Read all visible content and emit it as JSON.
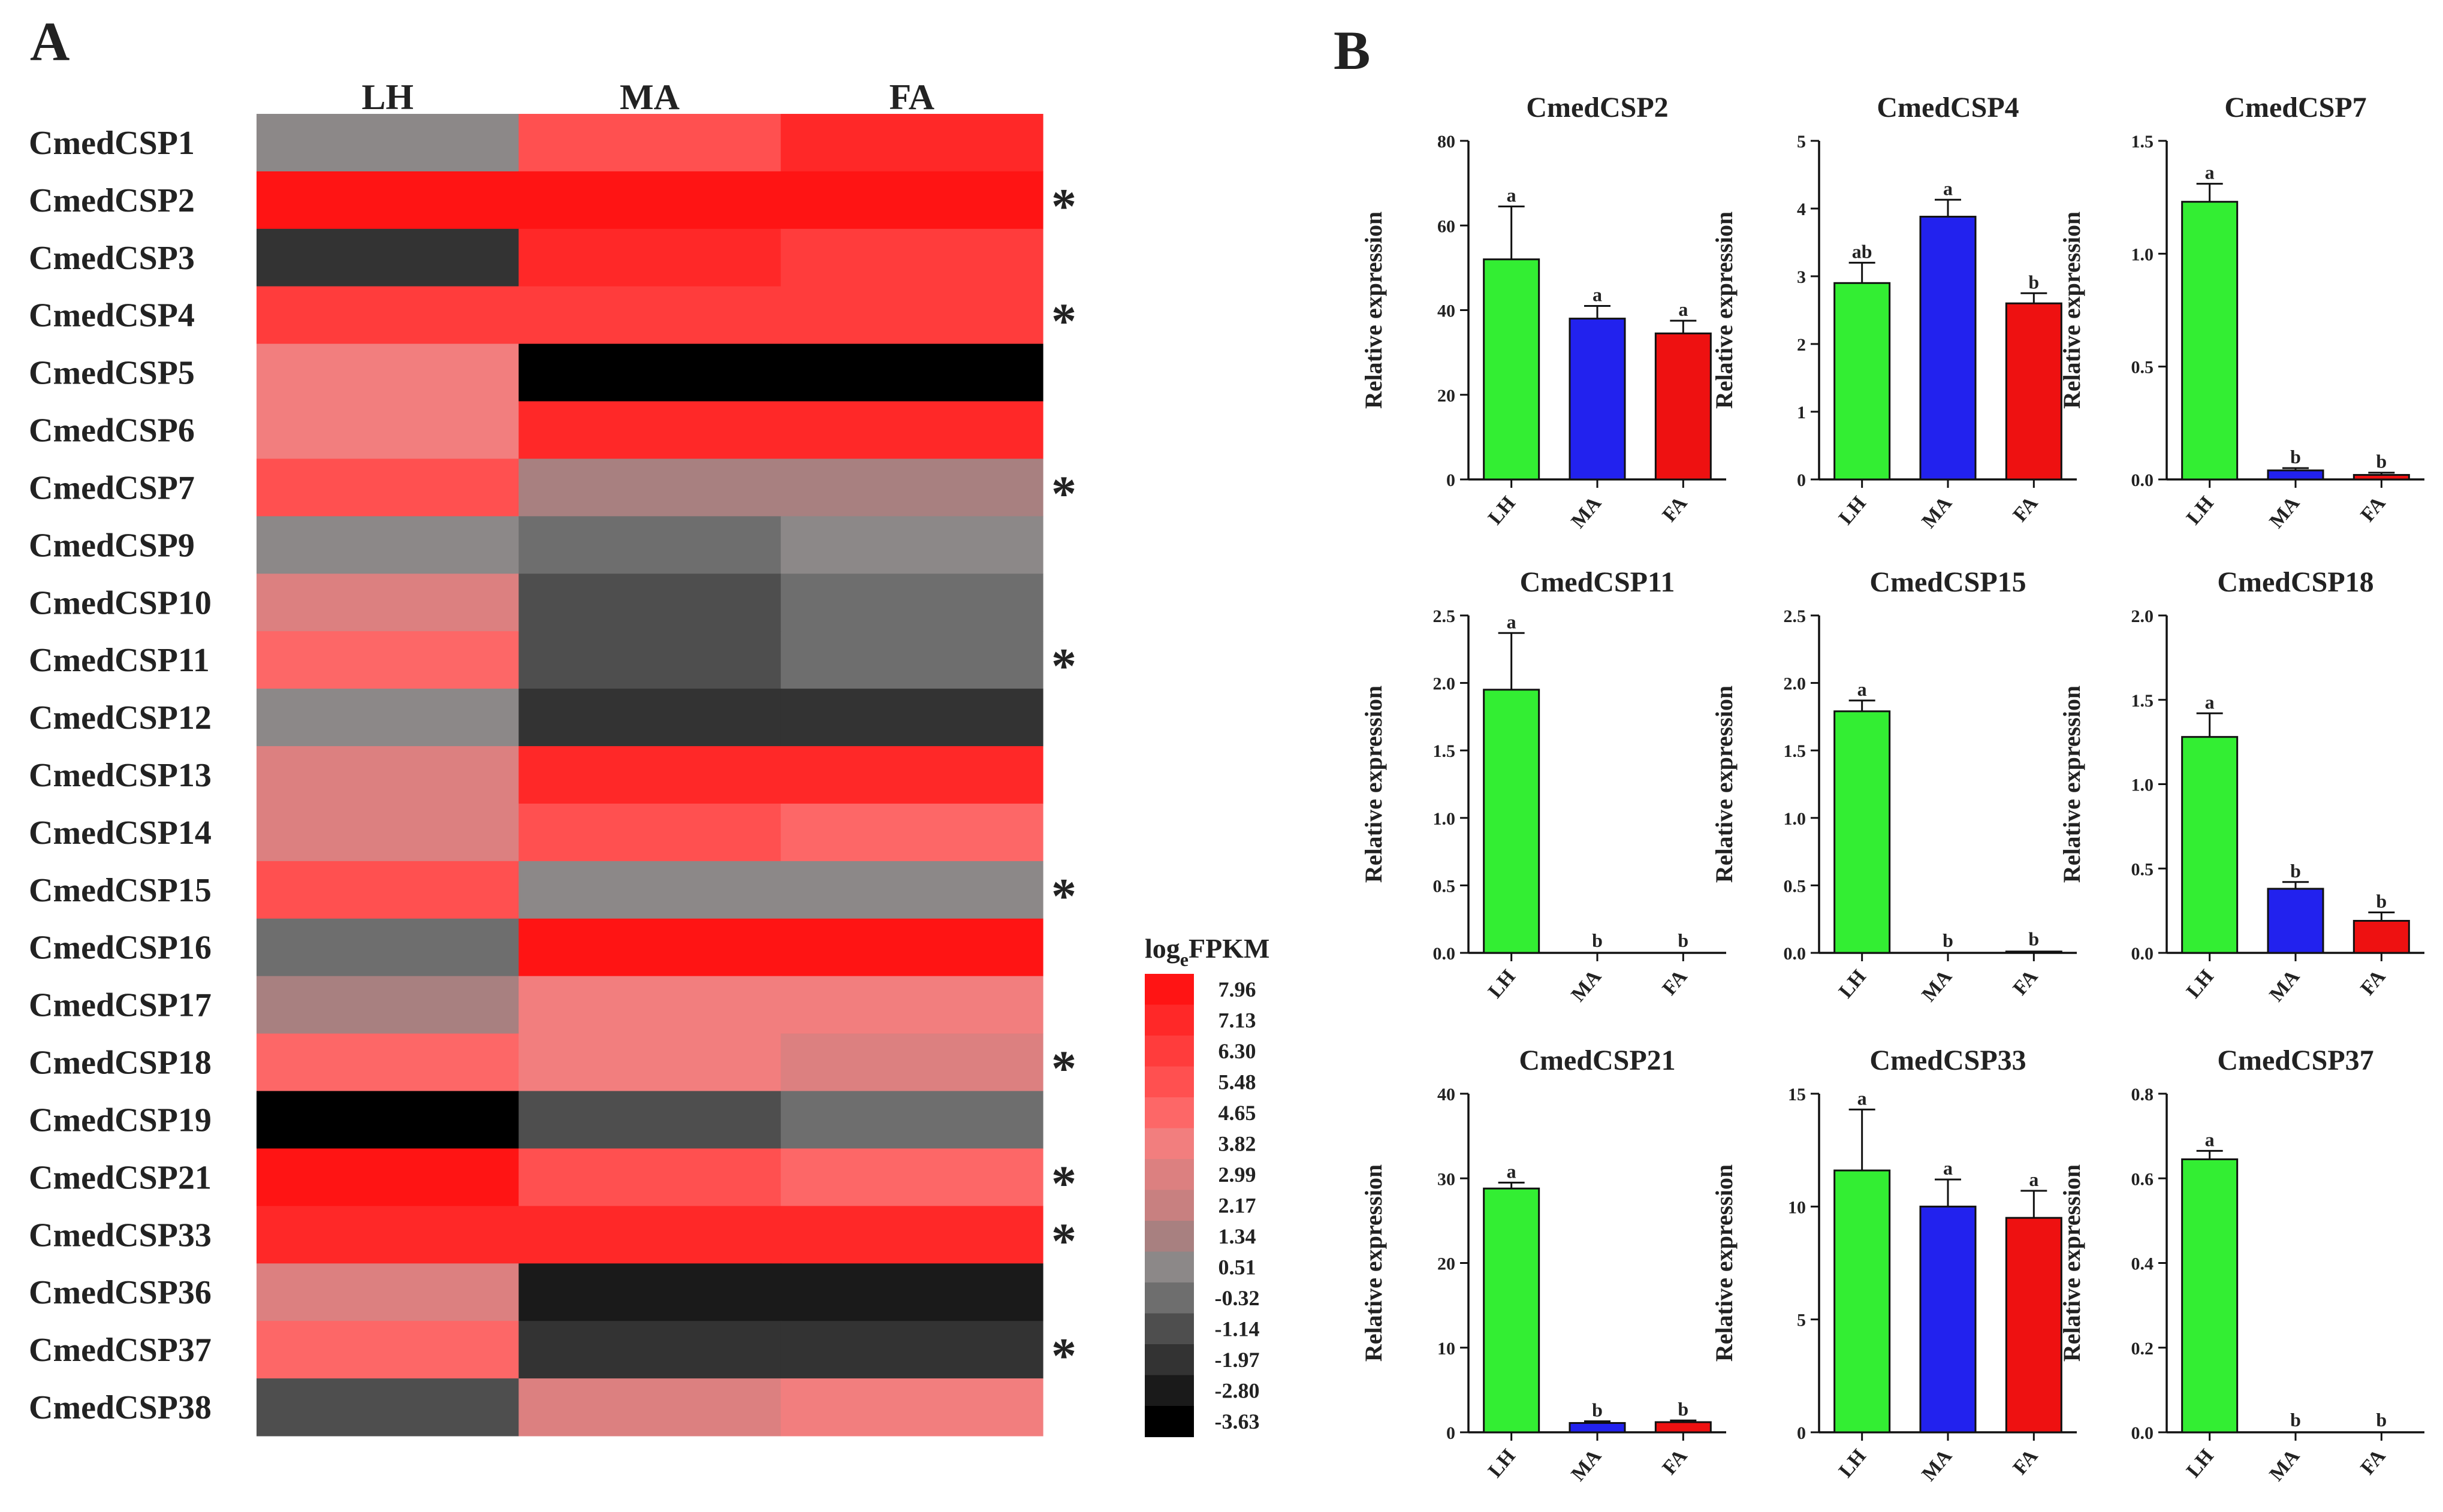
{
  "panel_labels": {
    "a": "A",
    "b": "B"
  },
  "colors": {
    "LH": "#33ee33",
    "MA": "#2222ee",
    "FA": "#ee1111",
    "LH_cspm2": "#4cf84c",
    "MA_cspm2": "#3b3bf2",
    "FA_cspm2": "#f54848"
  },
  "chart_data": [
    {
      "type": "heatmap",
      "id": "panel-a",
      "columns": [
        "LH",
        "MA",
        "FA"
      ],
      "rows": [
        "CmedCSP1",
        "CmedCSP2",
        "CmedCSP3",
        "CmedCSP4",
        "CmedCSP5",
        "CmedCSP6",
        "CmedCSP7",
        "CmedCSP9",
        "CmedCSP10",
        "CmedCSP11",
        "CmedCSP12",
        "CmedCSP13",
        "CmedCSP14",
        "CmedCSP15",
        "CmedCSP16",
        "CmedCSP17",
        "CmedCSP18",
        "CmedCSP19",
        "CmedCSP21",
        "CmedCSP33",
        "CmedCSP36",
        "CmedCSP37",
        "CmedCSP38"
      ],
      "values": [
        [
          0.9,
          5.8,
          7.0
        ],
        [
          7.96,
          7.96,
          7.96
        ],
        [
          -1.7,
          7.0,
          6.2
        ],
        [
          6.3,
          6.3,
          6.3
        ],
        [
          3.9,
          -3.63,
          -3.63
        ],
        [
          3.9,
          7.2,
          7.2
        ],
        [
          5.4,
          1.6,
          1.6
        ],
        [
          0.7,
          -0.3,
          0.7
        ],
        [
          2.8,
          -1.2,
          -0.3
        ],
        [
          4.8,
          -1.2,
          -0.3
        ],
        [
          0.5,
          -1.9,
          -1.9
        ],
        [
          2.8,
          7.2,
          7.2
        ],
        [
          2.8,
          5.6,
          4.5
        ],
        [
          5.6,
          0.6,
          0.6
        ],
        [
          -0.3,
          7.9,
          7.9
        ],
        [
          1.5,
          3.9,
          3.9
        ],
        [
          4.7,
          3.9,
          2.8
        ],
        [
          -3.63,
          -1.2,
          -0.3
        ],
        [
          7.96,
          5.6,
          4.6
        ],
        [
          7.3,
          7.3,
          7.3
        ],
        [
          2.8,
          -2.8,
          -2.8
        ],
        [
          4.7,
          -1.9,
          -1.9
        ],
        [
          -1.1,
          2.8,
          4.0
        ]
      ],
      "significant": [
        "CmedCSP2",
        "CmedCSP4",
        "CmedCSP7",
        "CmedCSP11",
        "CmedCSP15",
        "CmedCSP18",
        "CmedCSP21",
        "CmedCSP33",
        "CmedCSP37"
      ],
      "significance_mark": "*",
      "legend": {
        "title_main": "log",
        "title_sub": "e",
        "title_rest": "FPKM",
        "ticks": [
          "7.96",
          "7.13",
          "6.30",
          "5.48",
          "4.65",
          "3.82",
          "2.99",
          "2.17",
          "1.34",
          "0.51",
          "-0.32",
          "-1.14",
          "-1.97",
          "-2.80",
          "-3.63"
        ],
        "tick_values": [
          7.96,
          7.13,
          6.3,
          5.48,
          4.65,
          3.82,
          2.99,
          2.17,
          1.34,
          0.51,
          -0.32,
          -1.14,
          -1.97,
          -2.8,
          -3.63
        ],
        "color_stops": [
          "#ff1414",
          "#ff2828",
          "#ff3c3c",
          "#ff5050",
          "#fd6767",
          "#f27e7e",
          "#dc8080",
          "#c88080",
          "#a88080",
          "#8c8888",
          "#6e6e6e",
          "#4e4e4e",
          "#333333",
          "#1a1a1a",
          "#000000"
        ]
      },
      "range": [
        -3.63,
        7.96
      ]
    },
    {
      "type": "bar",
      "id": "CmedCSP2",
      "title": "CmedCSP2",
      "categories": [
        "LH",
        "MA",
        "FA"
      ],
      "values": [
        52,
        38,
        34.5
      ],
      "errors": [
        12.5,
        3,
        3
      ],
      "letters": [
        "a",
        "a",
        "a"
      ],
      "ylabel": "Relative expression",
      "ylim": [
        0,
        80
      ],
      "yticks": [
        0,
        20,
        40,
        60,
        80
      ],
      "ytick_labels": [
        "0",
        "20",
        "40",
        "60",
        "80"
      ]
    },
    {
      "type": "bar",
      "id": "CmedCSP4",
      "title": "CmedCSP4",
      "categories": [
        "LH",
        "MA",
        "FA"
      ],
      "values": [
        2.9,
        3.88,
        2.6
      ],
      "errors": [
        0.3,
        0.25,
        0.15
      ],
      "letters": [
        "ab",
        "a",
        "b"
      ],
      "ylabel": "Relative expression",
      "ylim": [
        0,
        5
      ],
      "yticks": [
        0,
        1,
        2,
        3,
        4,
        5
      ],
      "ytick_labels": [
        "0",
        "1",
        "2",
        "3",
        "4",
        "5"
      ]
    },
    {
      "type": "bar",
      "id": "CmedCSP7",
      "title": "CmedCSP7",
      "categories": [
        "LH",
        "MA",
        "FA"
      ],
      "values": [
        1.23,
        0.04,
        0.02
      ],
      "errors": [
        0.08,
        0.01,
        0.01
      ],
      "letters": [
        "a",
        "b",
        "b"
      ],
      "ylabel": "Relative expression",
      "ylim": [
        0,
        1.5
      ],
      "yticks": [
        0,
        0.5,
        1.0,
        1.5
      ],
      "ytick_labels": [
        "0.0",
        "0.5",
        "1.0",
        "1.5"
      ]
    },
    {
      "type": "bar",
      "id": "CmedCSP11",
      "title": "CmedCSP11",
      "categories": [
        "LH",
        "MA",
        "FA"
      ],
      "values": [
        1.95,
        0,
        0
      ],
      "errors": [
        0.42,
        0,
        0
      ],
      "letters": [
        "a",
        "b",
        "b"
      ],
      "ylabel": "Relative expression",
      "ylim": [
        0,
        2.5
      ],
      "yticks": [
        0,
        0.5,
        1.0,
        1.5,
        2.0,
        2.5
      ],
      "ytick_labels": [
        "0.0",
        "0.5",
        "1.0",
        "1.5",
        "2.0",
        "2.5"
      ]
    },
    {
      "type": "bar",
      "id": "CmedCSP15",
      "title": "CmedCSP15",
      "categories": [
        "LH",
        "MA",
        "FA"
      ],
      "values": [
        1.79,
        0,
        0.01
      ],
      "errors": [
        0.08,
        0,
        0
      ],
      "letters": [
        "a",
        "b",
        "b"
      ],
      "ylabel": "Relative expression",
      "ylim": [
        0,
        2.5
      ],
      "yticks": [
        0,
        0.5,
        1.0,
        1.5,
        2.0,
        2.5
      ],
      "ytick_labels": [
        "0.0",
        "0.5",
        "1.0",
        "1.5",
        "2.0",
        "2.5"
      ]
    },
    {
      "type": "bar",
      "id": "CmedCSP18",
      "title": "CmedCSP18",
      "categories": [
        "LH",
        "MA",
        "FA"
      ],
      "values": [
        1.28,
        0.38,
        0.19
      ],
      "errors": [
        0.14,
        0.04,
        0.05
      ],
      "letters": [
        "a",
        "b",
        "b"
      ],
      "ylabel": "Relative expression",
      "ylim": [
        0,
        2.0
      ],
      "yticks": [
        0,
        0.5,
        1.0,
        1.5,
        2.0
      ],
      "ytick_labels": [
        "0.0",
        "0.5",
        "1.0",
        "1.5",
        "2.0"
      ]
    },
    {
      "type": "bar",
      "id": "CmedCSP21",
      "title": "CmedCSP21",
      "categories": [
        "LH",
        "MA",
        "FA"
      ],
      "values": [
        28.8,
        1.1,
        1.2
      ],
      "errors": [
        0.7,
        0.2,
        0.2
      ],
      "letters": [
        "a",
        "b",
        "b"
      ],
      "ylabel": "Relative expression",
      "ylim": [
        0,
        40
      ],
      "yticks": [
        0,
        10,
        20,
        30,
        40
      ],
      "ytick_labels": [
        "0",
        "10",
        "20",
        "30",
        "40"
      ]
    },
    {
      "type": "bar",
      "id": "CmedCSP33",
      "title": "CmedCSP33",
      "categories": [
        "LH",
        "MA",
        "FA"
      ],
      "values": [
        11.6,
        10.0,
        9.5
      ],
      "errors": [
        2.7,
        1.2,
        1.2
      ],
      "letters": [
        "a",
        "a",
        "a"
      ],
      "ylabel": "Relative expression",
      "ylim": [
        0,
        15
      ],
      "yticks": [
        0,
        5,
        10,
        15
      ],
      "ytick_labels": [
        "0",
        "5",
        "10",
        "15"
      ]
    },
    {
      "type": "bar",
      "id": "CmedCSP37",
      "title": "CmedCSP37",
      "categories": [
        "LH",
        "MA",
        "FA"
      ],
      "values": [
        0.645,
        0,
        0
      ],
      "errors": [
        0.02,
        0,
        0
      ],
      "letters": [
        "a",
        "b",
        "b"
      ],
      "ylabel": "Relative expression",
      "ylim": [
        0,
        0.8
      ],
      "yticks": [
        0,
        0.2,
        0.4,
        0.6,
        0.8
      ],
      "ytick_labels": [
        "0.0",
        "0.2",
        "0.4",
        "0.6",
        "0.8"
      ]
    }
  ]
}
